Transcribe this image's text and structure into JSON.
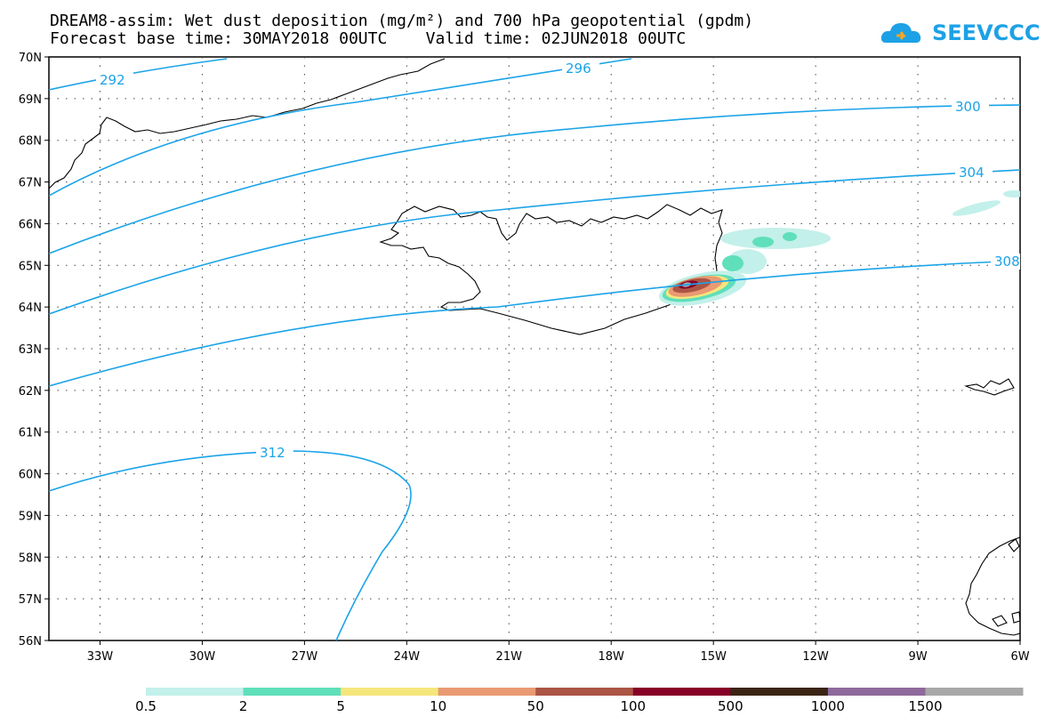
{
  "title": {
    "line1": "DREAM8-assim: Wet dust deposition (mg/m²) and 700 hPa geopotential (gpdm)",
    "line2": "Forecast base time: 30MAY2018 00UTC    Valid time: 02JUN2018 00UTC"
  },
  "logo": {
    "text": "SEEVCCC",
    "color": "#1da1e6"
  },
  "map": {
    "lat_labels": [
      "70N",
      "69N",
      "68N",
      "67N",
      "66N",
      "65N",
      "64N",
      "63N",
      "62N",
      "61N",
      "60N",
      "59N",
      "58N",
      "57N",
      "56N"
    ],
    "lon_labels": [
      "33W",
      "30W",
      "27W",
      "24W",
      "21W",
      "18W",
      "15W",
      "12W",
      "9W",
      "6W"
    ],
    "lon_range": [
      -34.5,
      -6
    ],
    "lat_range": [
      56,
      70
    ],
    "contour_color": "#1aa3e8",
    "contour_labels": [
      "292",
      "296",
      "300",
      "304",
      "308",
      "312"
    ]
  },
  "colorbar": {
    "colors": [
      "#c3f0ea",
      "#5fdfba",
      "#f5e67c",
      "#e99a72",
      "#ac5545",
      "#870028",
      "#3b2414",
      "#8e6a9c",
      "#a8a8a8"
    ],
    "labels": [
      "0.5",
      "2",
      "5",
      "10",
      "50",
      "100",
      "500",
      "1000",
      "1500"
    ]
  }
}
